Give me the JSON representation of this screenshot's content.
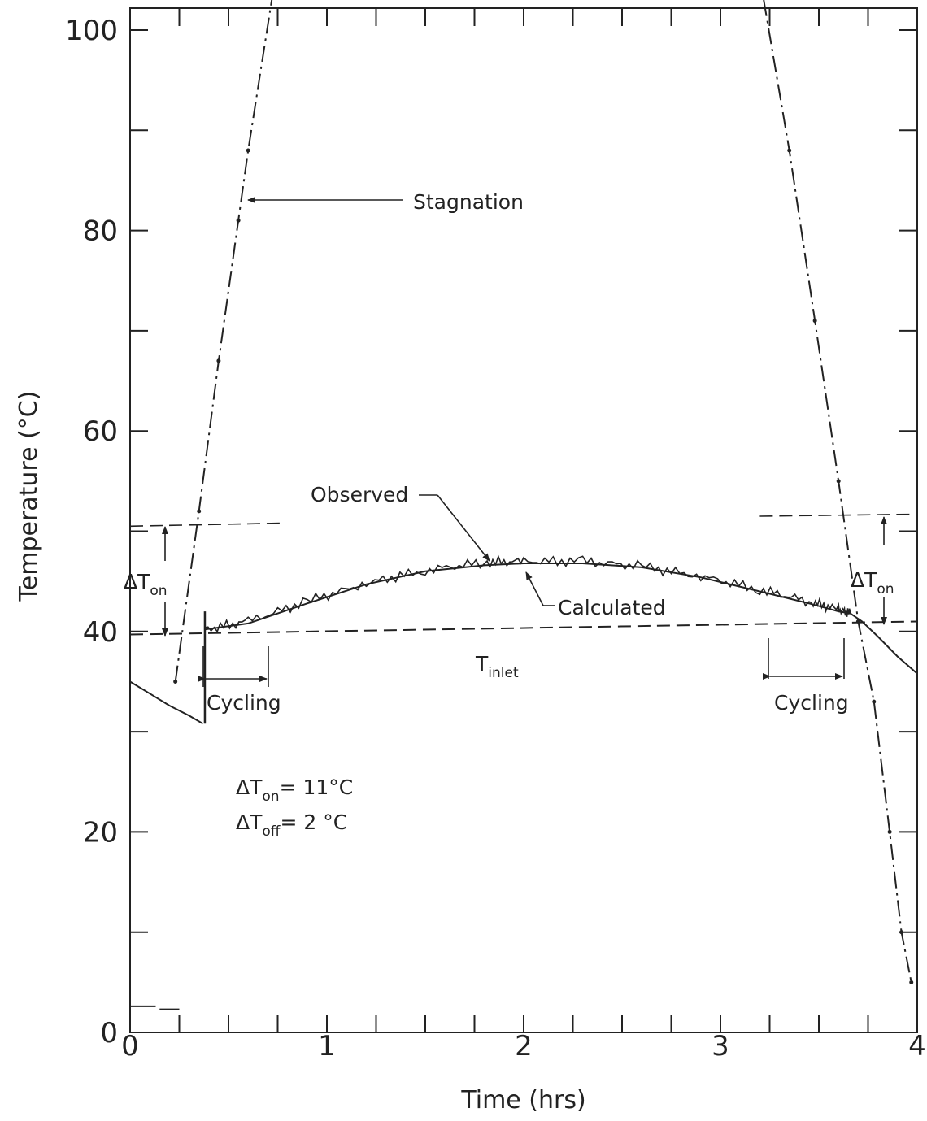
{
  "chart_data": {
    "type": "line",
    "xlabel": "Time (hrs)",
    "ylabel": "Temperature (°C)",
    "xlim": [
      0,
      4
    ],
    "ylim": [
      0,
      100
    ],
    "xticks": [
      0,
      1,
      2,
      3,
      4
    ],
    "yticks": [
      0,
      20,
      40,
      60,
      80,
      100
    ],
    "grid": false,
    "series": [
      {
        "name": "Stagnation",
        "style": "dash-dot",
        "segments": [
          [
            [
              0.23,
              35
            ],
            [
              0.35,
              52
            ],
            [
              0.45,
              67
            ],
            [
              0.55,
              81
            ],
            [
              0.6,
              88
            ],
            [
              0.72,
              103
            ]
          ],
          [
            [
              3.22,
              103
            ],
            [
              3.35,
              88
            ],
            [
              3.48,
              71
            ],
            [
              3.6,
              55
            ],
            [
              3.7,
              41
            ],
            [
              3.78,
              33
            ],
            [
              3.86,
              20
            ],
            [
              3.92,
              10
            ],
            [
              3.97,
              5
            ]
          ]
        ]
      },
      {
        "name": "Observed",
        "style": "solid-noisy",
        "points": [
          [
            0.38,
            40.2
          ],
          [
            0.6,
            41
          ],
          [
            0.9,
            43
          ],
          [
            1.2,
            44.8
          ],
          [
            1.5,
            46.1
          ],
          [
            1.8,
            46.9
          ],
          [
            2.0,
            47
          ],
          [
            2.3,
            47
          ],
          [
            2.6,
            46.5
          ],
          [
            2.9,
            45.5
          ],
          [
            3.2,
            44.2
          ],
          [
            3.45,
            43
          ],
          [
            3.6,
            42.2
          ],
          [
            3.66,
            41.8
          ]
        ]
      },
      {
        "name": "Calculated",
        "style": "solid",
        "segments": [
          [
            [
              0,
              35
            ],
            [
              0.1,
              33.8
            ],
            [
              0.2,
              32.6
            ],
            [
              0.3,
              31.6
            ],
            [
              0.37,
              30.8
            ]
          ],
          [
            [
              0.38,
              40.2
            ],
            [
              0.6,
              40.8
            ],
            [
              0.9,
              42.8
            ],
            [
              1.2,
              44.7
            ],
            [
              1.5,
              46
            ],
            [
              1.8,
              46.6
            ],
            [
              2.0,
              46.8
            ],
            [
              2.3,
              46.8
            ],
            [
              2.6,
              46.4
            ],
            [
              2.9,
              45.4
            ],
            [
              3.2,
              44
            ],
            [
              3.45,
              42.8
            ],
            [
              3.6,
              42
            ],
            [
              3.66,
              41.8
            ],
            [
              3.72,
              41
            ],
            [
              3.8,
              39.5
            ],
            [
              3.9,
              37.5
            ],
            [
              4.0,
              35.8
            ]
          ]
        ]
      },
      {
        "name": "T_inlet",
        "style": "dashed",
        "points": [
          [
            0,
            39.7
          ],
          [
            4,
            41
          ]
        ]
      }
    ],
    "reference_lines": [
      {
        "style": "dashed",
        "points": [
          [
            0,
            50.5
          ],
          [
            0.76,
            50.8
          ]
        ]
      },
      {
        "style": "dashed",
        "points": [
          [
            3.2,
            51.5
          ],
          [
            4,
            51.7
          ]
        ]
      },
      {
        "style": "solid",
        "points": [
          [
            0,
            2.6
          ],
          [
            0.13,
            2.6
          ]
        ]
      },
      {
        "style": "solid",
        "points": [
          [
            0.15,
            2.3
          ],
          [
            0.25,
            2.3
          ]
        ]
      }
    ],
    "annotations": {
      "stagnation": "Stagnation",
      "observed": "Observed",
      "calculated": "Calculated",
      "cycling_left": "Cycling",
      "cycling_right": "Cycling",
      "t_inlet_main": "T",
      "t_inlet_sub": "inlet",
      "dt_on_main": "ΔT",
      "dt_on_sub": "on",
      "param_on_main": "ΔT",
      "param_on_sub": "on",
      "param_on_value": "= 11°C",
      "param_off_main": "ΔT",
      "param_off_sub": "off",
      "param_off_value": "= 2 °C"
    }
  }
}
